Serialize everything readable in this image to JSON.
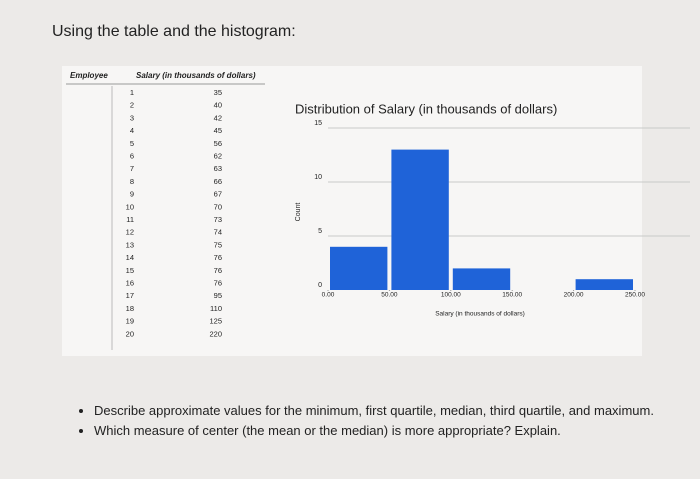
{
  "heading": "Using the table and the histogram:",
  "table": {
    "header": [
      "Employee",
      "Salary (in thousands of dollars)"
    ],
    "rows": [
      [
        1,
        35
      ],
      [
        2,
        40
      ],
      [
        3,
        42
      ],
      [
        4,
        45
      ],
      [
        5,
        56
      ],
      [
        6,
        62
      ],
      [
        7,
        63
      ],
      [
        8,
        66
      ],
      [
        9,
        67
      ],
      [
        10,
        70
      ],
      [
        11,
        73
      ],
      [
        12,
        74
      ],
      [
        13,
        75
      ],
      [
        14,
        76
      ],
      [
        15,
        76
      ],
      [
        16,
        76
      ],
      [
        17,
        95
      ],
      [
        18,
        110
      ],
      [
        19,
        125
      ],
      [
        20,
        220
      ]
    ]
  },
  "chart_data": {
    "type": "histogram",
    "title": "Distribution of Salary (in thousands of dollars)",
    "x_label": "Salary (in thousands of dollars)",
    "y_label": "Count",
    "bins": [
      0,
      50,
      100,
      150,
      200,
      250
    ],
    "values": [
      4,
      13,
      2,
      0,
      1
    ],
    "color": "#1f63d8",
    "xlim": [
      0,
      250
    ],
    "ylim": [
      0,
      15
    ],
    "xticks": [
      {
        "value": 0,
        "label": "0.00"
      },
      {
        "value": 50,
        "label": "50.00"
      },
      {
        "value": 100,
        "label": "100.00"
      },
      {
        "value": 150,
        "label": "150.00"
      },
      {
        "value": 200,
        "label": "200.00"
      },
      {
        "value": 250,
        "label": "250.00"
      }
    ],
    "yticks": [
      0,
      5,
      10,
      15
    ],
    "grid": true
  },
  "bullets": [
    "Describe approximate values for the minimum, first quartile, median, third quartile, and maximum.",
    "Which measure of center (the mean or the median) is more appropriate? Explain."
  ]
}
